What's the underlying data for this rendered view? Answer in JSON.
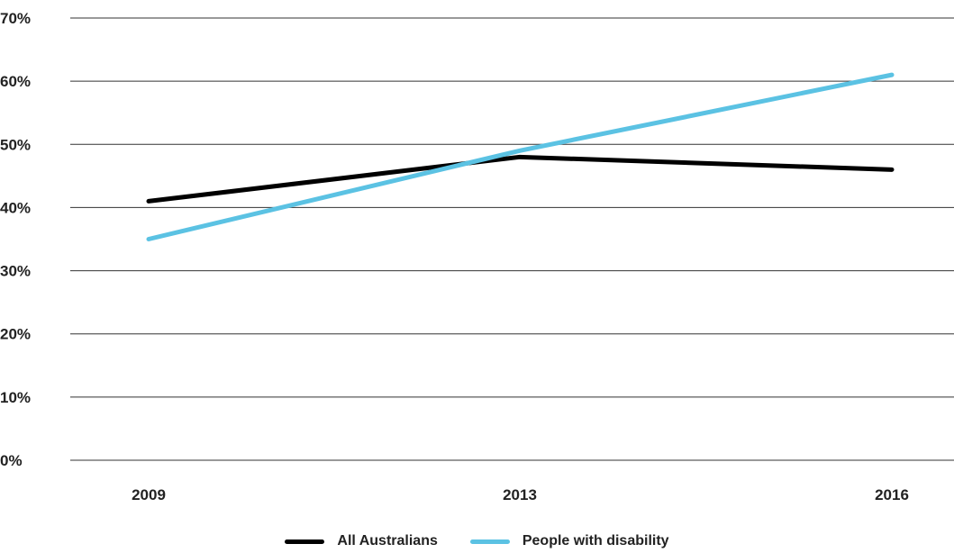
{
  "chart_data": {
    "type": "line",
    "title": "",
    "xlabel": "",
    "ylabel": "",
    "categories": [
      "2009",
      "2013",
      "2016"
    ],
    "ylim": [
      0,
      70
    ],
    "y_ticks": [
      "0%",
      "10%",
      "20%",
      "30%",
      "40%",
      "50%",
      "60%",
      "70%"
    ],
    "y_tick_values": [
      0,
      10,
      20,
      30,
      40,
      50,
      60,
      70
    ],
    "grid": "horizontal",
    "legend": "bottom-center",
    "series": [
      {
        "name": "All Australians",
        "color": "#000000",
        "values": [
          41,
          48,
          46
        ]
      },
      {
        "name": "People with disability",
        "color": "#5bc2e3",
        "values": [
          35,
          49,
          61
        ]
      }
    ]
  }
}
